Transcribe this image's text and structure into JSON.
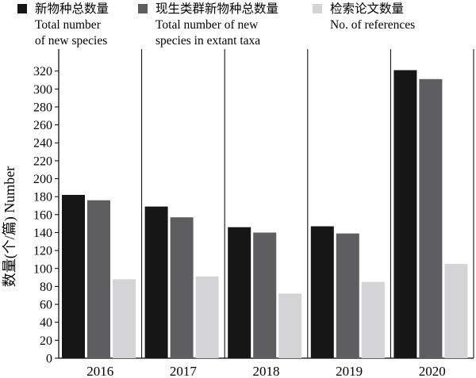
{
  "chart_data": {
    "type": "bar",
    "categories": [
      "2016",
      "2017",
      "2018",
      "2019",
      "2020"
    ],
    "series": [
      {
        "name": "新物种总数量 Total number of new species",
        "name_lines": [
          "新物种总数量",
          "Total number",
          "of new species"
        ],
        "color": "#161616",
        "values": [
          182,
          169,
          146,
          147,
          321
        ]
      },
      {
        "name": "现生类群新物种总数量 Total number of new species in extant taxa",
        "name_lines": [
          "现生类群新物种总数量",
          "Total number of new",
          "species in extant taxa"
        ],
        "color": "#5e5e60",
        "values": [
          176,
          157,
          140,
          139,
          311
        ]
      },
      {
        "name": "检索论文数量 No. of references",
        "name_lines": [
          "检索论文数量",
          "No. of references"
        ],
        "color": "#d4d4d6",
        "values": [
          88,
          91,
          72,
          85,
          105
        ]
      }
    ],
    "ylabel": "数量(个/篇) Number",
    "xlabel": "",
    "ylim": [
      0,
      340
    ],
    "yticks": [
      0,
      20,
      40,
      60,
      80,
      100,
      120,
      140,
      160,
      180,
      200,
      220,
      240,
      260,
      280,
      300,
      320
    ],
    "grid": false,
    "legend_position": "top"
  }
}
